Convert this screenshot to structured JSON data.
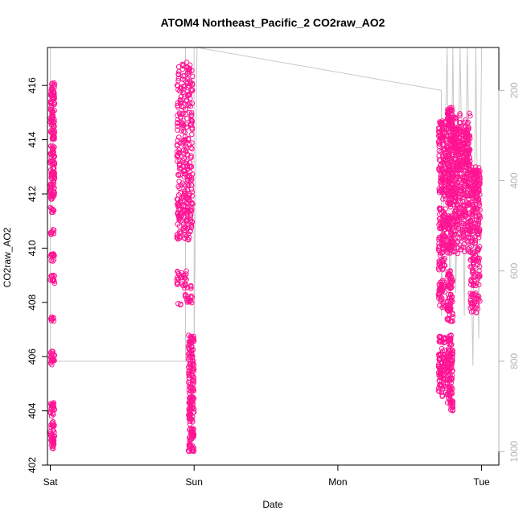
{
  "chart_data": {
    "type": "scatter",
    "title": "ATOM4 Northeast_Pacific_2 CO2raw_AO2",
    "xlabel": "Date",
    "ylabel": "CO2raw_AO2",
    "x_axis": {
      "type": "date",
      "ticks": [
        "Sat",
        "Sun",
        "Mon",
        "Tue"
      ],
      "range_days": [
        -0.02,
        3.12
      ]
    },
    "y_axis": {
      "left_range": [
        402,
        417.4
      ],
      "left_ticks": [
        402,
        404,
        406,
        408,
        410,
        412,
        414,
        416
      ]
    },
    "right_axis": {
      "label": "",
      "range": [
        1030,
        105
      ],
      "ticks": [
        200,
        400,
        600,
        800,
        1000
      ],
      "color": "#b3b3b3",
      "inverted": true
    },
    "colors": {
      "points": "#ff1493",
      "line": "#c8c8c8",
      "axis": "#000000",
      "right_axis": "#b3b3b3"
    },
    "series": [
      {
        "marker": "open-circle",
        "clusters": [
          {
            "x_range": [
              0.0,
              0.03
            ],
            "y_ranges": [
              [
                402.6,
                403.6
              ],
              [
                403.8,
                404.3
              ],
              [
                405.7,
                406.2
              ],
              [
                407.3,
                407.5
              ],
              [
                408.7,
                409.0
              ],
              [
                409.5,
                409.8
              ],
              [
                410.5,
                410.7
              ],
              [
                411.3,
                411.5
              ],
              [
                411.8,
                413.8
              ],
              [
                414.0,
                416.1
              ]
            ]
          },
          {
            "x_range": [
              0.88,
              0.99
            ],
            "y_ranges": [
              [
                407.9,
                408.3
              ],
              [
                408.5,
                409.2
              ],
              [
                410.3,
                412.0
              ],
              [
                411.0,
                415.6
              ],
              [
                415.6,
                416.9
              ]
            ]
          },
          {
            "x_range": [
              0.96,
              1.0
            ],
            "y_ranges": [
              [
                402.5,
                404.3
              ],
              [
                404.3,
                405.8
              ],
              [
                405.8,
                406.8
              ]
            ]
          },
          {
            "x_range": [
              2.7,
              2.75
            ],
            "y_ranges": [
              [
                404.5,
                406.3
              ],
              [
                406.5,
                406.9
              ],
              [
                407.8,
                408.8
              ],
              [
                409.2,
                410.2
              ],
              [
                410.3,
                411.5
              ],
              [
                411.8,
                414.7
              ]
            ]
          },
          {
            "x_range": [
              2.76,
              2.8
            ],
            "y_ranges": [
              [
                404.0,
                406.3
              ],
              [
                406.4,
                406.8
              ],
              [
                407.3,
                408.3
              ],
              [
                408.5,
                409.2
              ],
              [
                409.8,
                411.2
              ],
              [
                411.5,
                415.2
              ]
            ]
          },
          {
            "x_range": [
              2.8,
              2.92
            ],
            "y_ranges": [
              [
                409.8,
                411.2
              ],
              [
                410.5,
                414.4
              ],
              [
                411.5,
                414.5
              ],
              [
                413.0,
                415.0
              ]
            ]
          },
          {
            "x_range": [
              2.92,
              2.99
            ],
            "y_ranges": [
              [
                407.6,
                408.4
              ],
              [
                408.6,
                409.2
              ],
              [
                409.3,
                413.0
              ],
              [
                412.0,
                412.9
              ]
            ]
          }
        ]
      }
    ],
    "right_series": {
      "name_shown": false,
      "polyline_days_value": [
        [
          0.0,
          105
        ],
        [
          0.0,
          400
        ],
        [
          0.0,
          800
        ],
        [
          0.94,
          800
        ],
        [
          0.94,
          105
        ],
        [
          1.0,
          105
        ],
        [
          1.0,
          800
        ],
        [
          1.02,
          105
        ],
        [
          2.72,
          200
        ],
        [
          2.72,
          700
        ],
        [
          2.76,
          105
        ],
        [
          2.78,
          700
        ],
        [
          2.8,
          105
        ],
        [
          2.82,
          650
        ],
        [
          2.85,
          105
        ],
        [
          2.88,
          700
        ],
        [
          2.9,
          105
        ],
        [
          2.94,
          810
        ],
        [
          2.96,
          105
        ],
        [
          2.98,
          750
        ],
        [
          3.0,
          105
        ]
      ]
    },
    "grid": false,
    "legend": "none"
  }
}
